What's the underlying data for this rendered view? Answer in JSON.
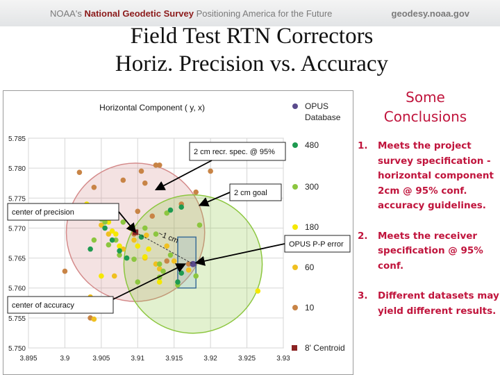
{
  "header": {
    "org_prefix": "NOAA's",
    "org_name": "National Geodetic Survey",
    "tagline": "Positioning America for the Future",
    "site": "geodesy.noaa.gov"
  },
  "slide": {
    "title_line1": "Field Test RTN Correctors",
    "title_line2": "Horiz. Precision vs. Accuracy"
  },
  "conclusions": {
    "heading_line1": "Some",
    "heading_line2": "Conclusions",
    "items": [
      {
        "num": "1.",
        "text": "Meets the project survey specification - horizontal component 2cm @ 95% conf. accuracy guidelines."
      },
      {
        "num": "2.",
        "text": "Meets the receiver specification @ 95% conf."
      },
      {
        "num": "3.",
        "text": "Different datasets may yield different results."
      }
    ]
  },
  "colors": {
    "opus": "#5a4a8c",
    "s480": "#1e9a50",
    "s300": "#8cc63f",
    "s180": "#f5e800",
    "s60": "#f0c020",
    "s10": "#c88446",
    "centroid": "#8b2323",
    "precision_circle": "#d48a8a",
    "accuracy_circle": "#8cc63f",
    "opus_box": "#3c6e96",
    "accent_text": "#c0143c"
  },
  "chart_data": {
    "type": "scatter",
    "title": "Horizontal Component ( y, x)",
    "xlim": [
      3.895,
      3.93
    ],
    "ylim": [
      5.75,
      5.785
    ],
    "xticks": [
      "3.895",
      "3.9",
      "3.905",
      "3.91",
      "3.915",
      "3.92",
      "3.925",
      "3.93"
    ],
    "yticks": [
      "5.785",
      "5.780",
      "5.775",
      "5.770",
      "5.765",
      "5.760",
      "5.755",
      "5.750"
    ],
    "grid": true,
    "legend_position": "right",
    "series": [
      {
        "name": "OPUS Database",
        "key": "opus",
        "points": [
          [
            3.9176,
            5.764
          ]
        ]
      },
      {
        "name": "480",
        "key": "s480",
        "points": [
          [
            3.9035,
            5.7735
          ],
          [
            3.9055,
            5.77
          ],
          [
            3.9065,
            5.768
          ],
          [
            3.9075,
            5.7662
          ],
          [
            3.9085,
            5.765
          ],
          [
            3.9145,
            5.773
          ],
          [
            3.916,
            5.7735
          ],
          [
            3.9155,
            5.761
          ],
          [
            3.916,
            5.7625
          ],
          [
            3.9105,
            5.7685
          ],
          [
            3.9035,
            5.7665
          ]
        ]
      },
      {
        "name": "300",
        "key": "s300",
        "points": [
          [
            3.905,
            5.7715
          ],
          [
            3.9055,
            5.771
          ],
          [
            3.904,
            5.768
          ],
          [
            3.906,
            5.7672
          ],
          [
            3.9075,
            5.7655
          ],
          [
            3.9095,
            5.7648
          ],
          [
            3.91,
            5.761
          ],
          [
            3.913,
            5.764
          ],
          [
            3.9135,
            5.7628
          ],
          [
            3.9155,
            5.7605
          ],
          [
            3.918,
            5.762
          ],
          [
            3.9145,
            5.7655
          ],
          [
            3.9125,
            5.769
          ],
          [
            3.911,
            5.77
          ],
          [
            3.914,
            5.7725
          ],
          [
            3.9185,
            5.7705
          ],
          [
            3.913,
            5.7618
          ],
          [
            3.907,
            5.768
          ],
          [
            3.908,
            5.771
          ]
        ]
      },
      {
        "name": "180",
        "key": "s180",
        "points": [
          [
            3.903,
            5.774
          ],
          [
            3.906,
            5.771
          ],
          [
            3.9065,
            5.7695
          ],
          [
            3.9075,
            5.767
          ],
          [
            3.909,
            5.77
          ],
          [
            3.91,
            5.767
          ],
          [
            3.9115,
            5.7665
          ],
          [
            3.913,
            5.761
          ],
          [
            3.911,
            5.7652
          ],
          [
            3.9265,
            5.7595
          ],
          [
            3.905,
            5.762
          ],
          [
            3.907,
            5.769
          ]
        ]
      },
      {
        "name": "60",
        "key": "s60",
        "points": [
          [
            3.9035,
            5.7585
          ],
          [
            3.905,
            5.7705
          ],
          [
            3.906,
            5.769
          ],
          [
            3.9068,
            5.762
          ],
          [
            3.908,
            5.7665
          ],
          [
            3.9095,
            5.768
          ],
          [
            3.911,
            5.765
          ],
          [
            3.9125,
            5.764
          ],
          [
            3.913,
            5.7632
          ],
          [
            3.914,
            5.767
          ],
          [
            3.917,
            5.763
          ],
          [
            3.915,
            5.7645
          ],
          [
            3.904,
            5.7548
          ],
          [
            3.9112,
            5.7688
          ]
        ]
      },
      {
        "name": "10",
        "key": "s10",
        "points": [
          [
            3.9,
            5.7628
          ],
          [
            3.902,
            5.7793
          ],
          [
            3.904,
            5.7768
          ],
          [
            3.908,
            5.778
          ],
          [
            3.9105,
            5.7795
          ],
          [
            3.911,
            5.7775
          ],
          [
            3.9125,
            5.7805
          ],
          [
            3.913,
            5.7805
          ],
          [
            3.91,
            5.7728
          ],
          [
            3.912,
            5.772
          ],
          [
            3.916,
            5.774
          ],
          [
            3.917,
            5.764
          ],
          [
            3.9035,
            5.755
          ],
          [
            3.914,
            5.7645
          ],
          [
            3.92,
            5.7795
          ],
          [
            3.918,
            5.776
          ],
          [
            3.9055,
            5.773
          ],
          [
            3.9095,
            5.769
          ]
        ]
      },
      {
        "name": "8' Centroid",
        "key": "centroid",
        "points": [
          [
            3.9097,
            5.7693
          ]
        ]
      }
    ],
    "circles": [
      {
        "name": "precision",
        "center": [
          3.9097,
          5.7693
        ],
        "radius_x": 0.0095,
        "color_key": "precision_circle"
      },
      {
        "name": "accuracy",
        "center": [
          3.9176,
          5.764
        ],
        "radius_x": 0.0095,
        "color_key": "accuracy_circle"
      }
    ],
    "opus_box": {
      "x": [
        3.9155,
        3.918
      ],
      "y": [
        5.76,
        5.7685
      ]
    },
    "annotations": [
      {
        "key": "spec95",
        "text": "2 cm recr. spec. @ 95%",
        "arrow_to": [
          3.9125,
          5.7764
        ]
      },
      {
        "key": "goal",
        "text": "2 cm goal",
        "arrow_to": [
          3.9185,
          5.7738
        ]
      },
      {
        "key": "cprec",
        "text": "center of precision",
        "arrow_to": [
          3.9097,
          5.7693
        ]
      },
      {
        "key": "opuserr",
        "text": "OPUS P-P error",
        "arrow_to": [
          3.918,
          5.7642
        ]
      },
      {
        "key": "cacc",
        "text": "center of accuracy",
        "arrow_to": [
          3.9165,
          5.764
        ]
      },
      {
        "key": "onecm",
        "text": "~1 cm"
      }
    ]
  }
}
